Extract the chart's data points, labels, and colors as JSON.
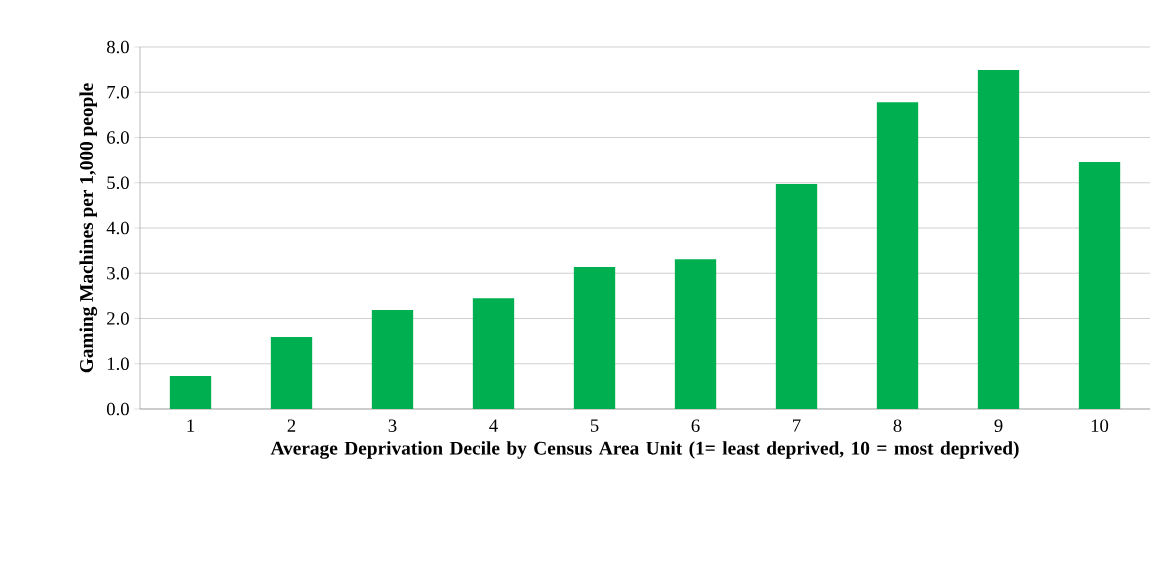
{
  "chart_data": {
    "type": "bar",
    "xlabel": "Average Deprivation Decile by Census Area Unit (1= least deprived, 10 = most deprived)",
    "ylabel": "Gaming Machines per 1,000 people",
    "categories": [
      "1",
      "2",
      "3",
      "4",
      "5",
      "6",
      "7",
      "8",
      "9",
      "10"
    ],
    "values": [
      0.73,
      1.59,
      2.19,
      2.45,
      3.14,
      3.31,
      4.97,
      6.78,
      7.49,
      5.46
    ],
    "color": "#00b050",
    "ylim": [
      0,
      8
    ],
    "yticks": [
      {
        "value": 0,
        "label": "0.0"
      },
      {
        "value": 1,
        "label": "1.0"
      },
      {
        "value": 2,
        "label": "2.0"
      },
      {
        "value": 3,
        "label": "3.0"
      },
      {
        "value": 4,
        "label": "4.0"
      },
      {
        "value": 5,
        "label": "5.0"
      },
      {
        "value": 6,
        "label": "6.0"
      },
      {
        "value": 7,
        "label": "7.0"
      },
      {
        "value": 8,
        "label": "8.0"
      }
    ],
    "grid": "y"
  }
}
